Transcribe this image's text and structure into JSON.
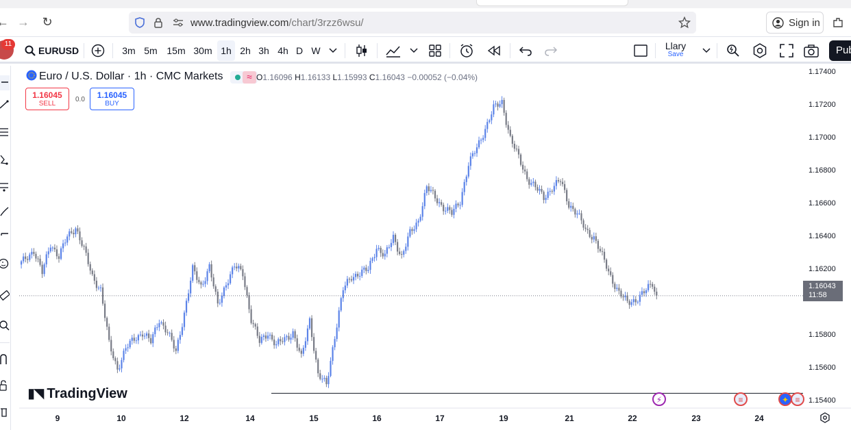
{
  "browser": {
    "back": "←",
    "forward": "→",
    "reload": "↻",
    "url_domain": "www.tradingview.com",
    "url_path": "/chart/3rzz6wsu/",
    "signin_label": "Sign in"
  },
  "toolbar": {
    "notification_count": "11",
    "symbol": "EURUSD",
    "intervals": [
      "3m",
      "5m",
      "15m",
      "30m",
      "1h",
      "2h",
      "3h",
      "4h",
      "D",
      "W"
    ],
    "active_interval": "1h",
    "layout_name": "Llary",
    "save_label": "Save",
    "publish_label": "Pub"
  },
  "legend": {
    "title": "Euro / U.S. Dollar · 1h · CMC Markets",
    "o_label": "O",
    "o": "1.16096",
    "h_label": "H",
    "h": "1.16133",
    "l_label": "L",
    "l": "1.15993",
    "c_label": "C",
    "c": "1.16043",
    "change": "−0.00052 (−0.04%)",
    "sell_price": "1.16045",
    "sell_label": "SELL",
    "spread": "0.0",
    "buy_price": "1.16045",
    "buy_label": "BUY"
  },
  "watermark": "TradingView",
  "current_price": "1.16043",
  "countdown": "11:58",
  "colors": {
    "up": "#5b83e8",
    "down": "#787b86",
    "accent": "#2962ff",
    "sell": "#f23645",
    "event_purple": "#9c27b0"
  },
  "chart_data": {
    "type": "candlestick",
    "symbol": "EURUSD",
    "timeframe": "1h",
    "x_ticks": [
      "9",
      "10",
      "12",
      "14",
      "15",
      "16",
      "17",
      "19",
      "21",
      "22",
      "23",
      "24"
    ],
    "y_ticks": [
      "1.17400",
      "1.17200",
      "1.17000",
      "1.16800",
      "1.16600",
      "1.16400",
      "1.16200",
      "1.15800",
      "1.15600",
      "1.15400"
    ],
    "ylim": [
      1.1536,
      1.1744
    ],
    "close_path": [
      [
        0,
        1.1624
      ],
      [
        6,
        1.1632
      ],
      [
        10,
        1.1618
      ],
      [
        14,
        1.1636
      ],
      [
        18,
        1.1628
      ],
      [
        22,
        1.164
      ],
      [
        26,
        1.1646
      ],
      [
        30,
        1.1632
      ],
      [
        34,
        1.1616
      ],
      [
        38,
        1.1608
      ],
      [
        42,
        1.1575
      ],
      [
        46,
        1.156
      ],
      [
        50,
        1.1572
      ],
      [
        54,
        1.1578
      ],
      [
        58,
        1.1582
      ],
      [
        62,
        1.1576
      ],
      [
        66,
        1.159
      ],
      [
        70,
        1.1582
      ],
      [
        74,
        1.157
      ],
      [
        78,
        1.1594
      ],
      [
        82,
        1.162
      ],
      [
        86,
        1.161
      ],
      [
        90,
        1.1622
      ],
      [
        94,
        1.1598
      ],
      [
        98,
        1.1612
      ],
      [
        102,
        1.1622
      ],
      [
        106,
        1.1618
      ],
      [
        110,
        1.159
      ],
      [
        114,
        1.1576
      ],
      [
        118,
        1.1582
      ],
      [
        122,
        1.1574
      ],
      [
        126,
        1.1578
      ],
      [
        130,
        1.1582
      ],
      [
        134,
        1.1566
      ],
      [
        138,
        1.159
      ],
      [
        142,
        1.1556
      ],
      [
        146,
        1.155
      ],
      [
        150,
        1.158
      ],
      [
        154,
        1.1608
      ],
      [
        158,
        1.1616
      ],
      [
        162,
        1.1618
      ],
      [
        166,
        1.162
      ],
      [
        170,
        1.1634
      ],
      [
        174,
        1.1628
      ],
      [
        178,
        1.164
      ],
      [
        182,
        1.1628
      ],
      [
        186,
        1.1642
      ],
      [
        190,
        1.165
      ],
      [
        194,
        1.167
      ],
      [
        198,
        1.1664
      ],
      [
        202,
        1.1658
      ],
      [
        206,
        1.1654
      ],
      [
        210,
        1.1662
      ],
      [
        214,
        1.1684
      ],
      [
        218,
        1.1694
      ],
      [
        222,
        1.1706
      ],
      [
        226,
        1.1718
      ],
      [
        230,
        1.1722
      ],
      [
        234,
        1.17
      ],
      [
        238,
        1.1688
      ],
      [
        242,
        1.1676
      ],
      [
        246,
        1.167
      ],
      [
        250,
        1.1664
      ],
      [
        254,
        1.167
      ],
      [
        258,
        1.1674
      ],
      [
        262,
        1.166
      ],
      [
        266,
        1.1654
      ],
      [
        270,
        1.1644
      ],
      [
        274,
        1.164
      ],
      [
        278,
        1.1628
      ],
      [
        282,
        1.1616
      ],
      [
        286,
        1.1606
      ],
      [
        290,
        1.16
      ],
      [
        294,
        1.1602
      ],
      [
        298,
        1.1606
      ],
      [
        302,
        1.1612
      ],
      [
        304,
        1.1604
      ]
    ],
    "annotations": [
      {
        "type": "horizontal_line",
        "value": 1.1545
      }
    ],
    "events": [
      "lightning",
      "us-flag",
      "eu-flag",
      "us-flag"
    ],
    "grid": false
  }
}
